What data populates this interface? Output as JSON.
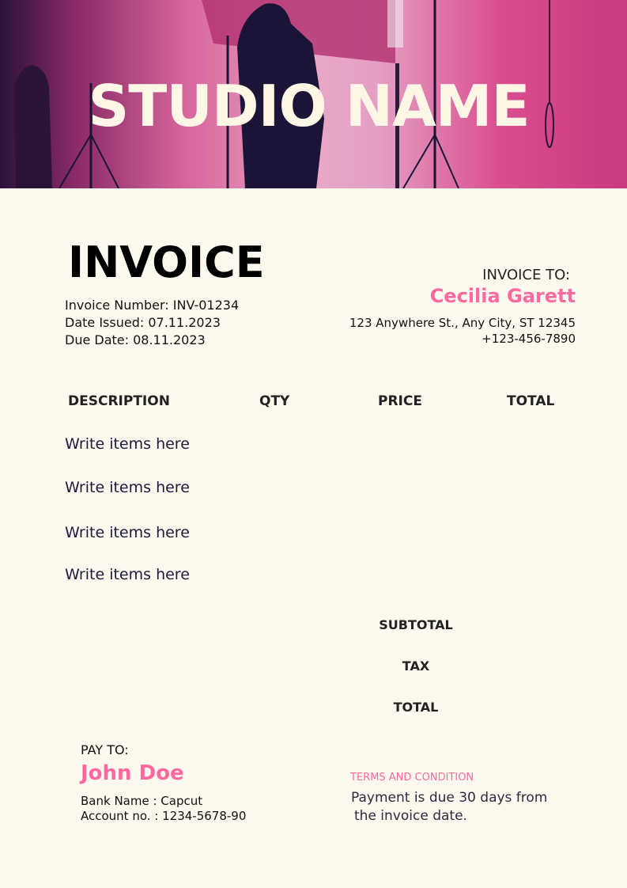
{
  "banner": {
    "studio_name": "STUDIO NAME"
  },
  "invoice": {
    "title": "INVOICE",
    "number": "Invoice Number: INV-01234",
    "issued": "Date Issued: 07.11.2023",
    "due": "Due Date: 08.11.2023"
  },
  "bill_to": {
    "label": "INVOICE TO:",
    "name": "Cecilia Garett",
    "address": "123 Anywhere St., Any City, ST 12345",
    "phone": "+123-456-7890"
  },
  "table": {
    "headers": [
      "DESCRIPTION",
      "QTY",
      "PRICE",
      "TOTAL"
    ],
    "items": [
      "Write items here",
      "Write items here",
      "Write items here",
      "Write items here"
    ]
  },
  "summary": {
    "subtotal": "SUBTOTAL",
    "tax": "TAX",
    "total": "TOTAL"
  },
  "pay_to": {
    "label": "PAY TO:",
    "name": "John Doe",
    "bank": "Bank Name : Capcut",
    "account": "Account no. : 1234-5678-90"
  },
  "terms": {
    "label": "TERMS AND CONDITION",
    "text1": "Payment is due 30 days from",
    "text2": "the invoice date."
  },
  "colors": {
    "accent": "#ff69a0",
    "background": "#fef9ee",
    "items_text": "#1c1a3f"
  }
}
